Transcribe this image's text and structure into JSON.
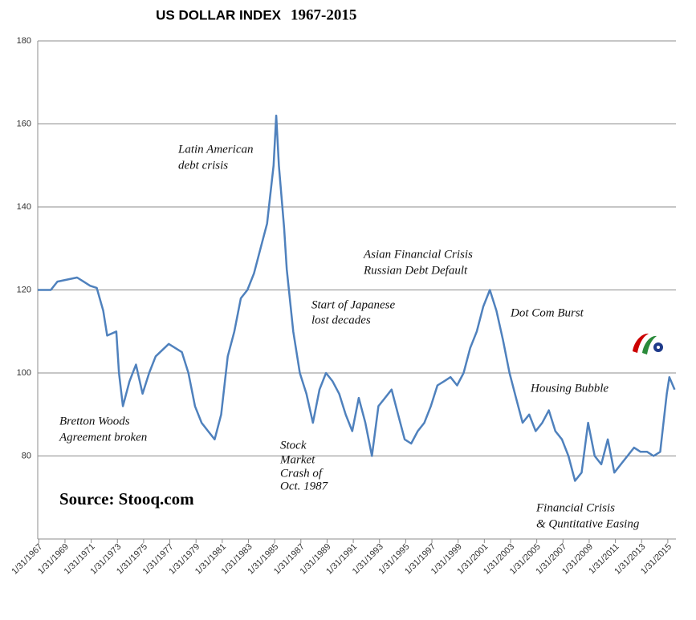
{
  "chart_data": {
    "type": "line",
    "title": "US DOLLAR INDEX",
    "subtitle": "1967-2015",
    "series": [
      {
        "name": "US Dollar Index",
        "color": "#4f81bd",
        "x": [
          1967.0,
          1968.0,
          1968.5,
          1970.0,
          1970.5,
          1971.0,
          1971.5,
          1972.0,
          1972.3,
          1973.0,
          1973.2,
          1973.5,
          1974.0,
          1974.5,
          1975.0,
          1975.5,
          1976.0,
          1977.0,
          1978.0,
          1978.5,
          1979.0,
          1979.5,
          1980.0,
          1980.5,
          1981.0,
          1981.5,
          1982.0,
          1982.5,
          1983.0,
          1983.5,
          1984.0,
          1984.5,
          1985.0,
          1985.2,
          1985.4,
          1985.8,
          1986.0,
          1986.5,
          1987.0,
          1987.5,
          1988.0,
          1988.5,
          1989.0,
          1989.5,
          1990.0,
          1990.5,
          1991.0,
          1991.5,
          1992.0,
          1992.5,
          1993.0,
          1993.5,
          1994.0,
          1994.5,
          1995.0,
          1995.5,
          1996.0,
          1996.5,
          1997.0,
          1997.5,
          1998.0,
          1998.5,
          1999.0,
          1999.5,
          2000.0,
          2000.5,
          2001.0,
          2001.5,
          2002.0,
          2002.5,
          2003.0,
          2003.5,
          2004.0,
          2004.5,
          2005.0,
          2005.5,
          2006.0,
          2006.5,
          2007.0,
          2007.5,
          2008.0,
          2008.5,
          2009.0,
          2009.5,
          2010.0,
          2010.5,
          2011.0,
          2011.5,
          2012.0,
          2012.5,
          2013.0,
          2013.5,
          2014.0,
          2014.5,
          2015.0,
          2015.2,
          2015.6
        ],
        "values": [
          120,
          120,
          122,
          123,
          122,
          121,
          120.5,
          115,
          109,
          110,
          100,
          92,
          98,
          102,
          95,
          100,
          104,
          107,
          105,
          100,
          92,
          88,
          86,
          84,
          90,
          104,
          110,
          118,
          120,
          124,
          130,
          136,
          150,
          162,
          150,
          135,
          125,
          110,
          100,
          95,
          88,
          96,
          100,
          98,
          95,
          90,
          86,
          94,
          88,
          80,
          92,
          94,
          96,
          90,
          84,
          83,
          86,
          88,
          92,
          97,
          98,
          99,
          97,
          100,
          106,
          110,
          116,
          120,
          115,
          108,
          100,
          94,
          88,
          90,
          86,
          88,
          91,
          86,
          84,
          80,
          74,
          76,
          88,
          80,
          78,
          84,
          76,
          78,
          80,
          82,
          81,
          81,
          80,
          81,
          95,
          99,
          96
        ]
      }
    ],
    "xlim": [
      1967.0,
      2015.7
    ],
    "xticks": [
      {
        "value": 1967.08,
        "label": "1/31/1967"
      },
      {
        "value": 1969.08,
        "label": "1/31/1969"
      },
      {
        "value": 1971.08,
        "label": "1/31/1971"
      },
      {
        "value": 1973.08,
        "label": "1/31/1973"
      },
      {
        "value": 1975.08,
        "label": "1/31/1975"
      },
      {
        "value": 1977.08,
        "label": "1/31/1977"
      },
      {
        "value": 1979.08,
        "label": "1/31/1979"
      },
      {
        "value": 1981.08,
        "label": "1/31/1981"
      },
      {
        "value": 1983.08,
        "label": "1/31/1983"
      },
      {
        "value": 1985.08,
        "label": "1/31/1985"
      },
      {
        "value": 1987.08,
        "label": "1/31/1987"
      },
      {
        "value": 1989.08,
        "label": "1/31/1989"
      },
      {
        "value": 1991.08,
        "label": "1/31/1991"
      },
      {
        "value": 1993.08,
        "label": "1/31/1993"
      },
      {
        "value": 1995.08,
        "label": "1/31/1995"
      },
      {
        "value": 1997.08,
        "label": "1/31/1997"
      },
      {
        "value": 1999.08,
        "label": "1/31/1999"
      },
      {
        "value": 2001.08,
        "label": "1/31/2001"
      },
      {
        "value": 2003.08,
        "label": "1/31/2003"
      },
      {
        "value": 2005.08,
        "label": "1/31/2005"
      },
      {
        "value": 2007.08,
        "label": "1/31/2007"
      },
      {
        "value": 2009.08,
        "label": "1/31/2009"
      },
      {
        "value": 2011.08,
        "label": "1/31/2011"
      },
      {
        "value": 2013.08,
        "label": "1/31/2013"
      },
      {
        "value": 2015.08,
        "label": "1/31/2015"
      }
    ],
    "ylim": [
      60,
      180
    ],
    "yticks": [
      80,
      100,
      120,
      140,
      160,
      180
    ],
    "grid": true,
    "annotations": [
      "Latin American",
      "debt crisis",
      "Asian Financial Crisis",
      "Russian Debt Default",
      "Start of Japanese",
      "lost decades",
      "Dot Com Burst",
      "Housing Bubble",
      "Bretton Woods",
      "Agreement broken",
      "Stock",
      "Market",
      "Crash of",
      "Oct. 1987",
      "Financial Crisis",
      "& Quntitative Easing",
      "Source: Stooq.com"
    ]
  }
}
